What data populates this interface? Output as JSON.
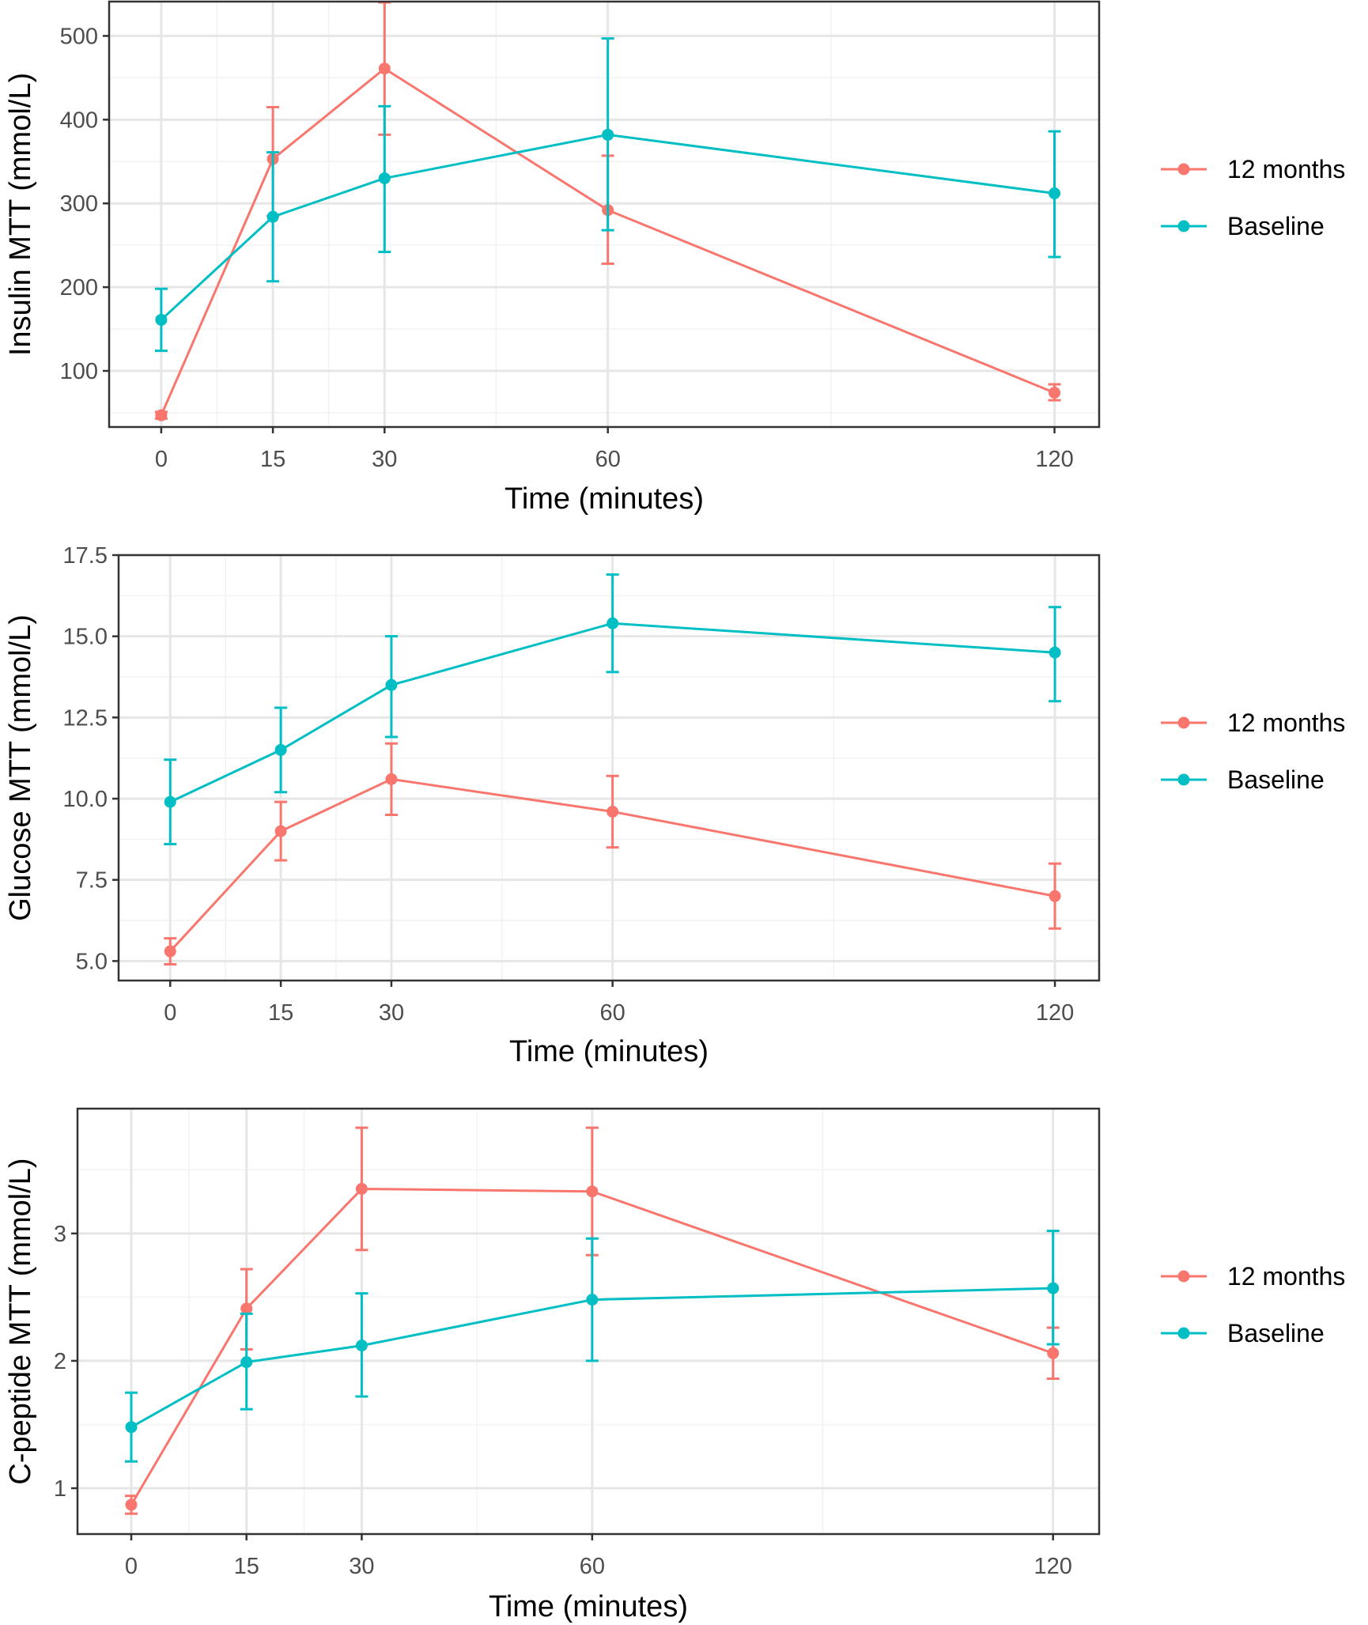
{
  "colors": {
    "months12": "#F8766D",
    "baseline": "#00BFC4"
  },
  "chart_data": [
    {
      "type": "line",
      "ylabel": "Insulin MTT (mmol/L)",
      "xlabel": "Time (minutes)",
      "x": [
        0,
        15,
        30,
        60,
        120
      ],
      "xticks": [
        "0",
        "15",
        "30",
        "60",
        "120"
      ],
      "xlim": [
        -7,
        126
      ],
      "xminor": [
        7.5,
        22.5,
        45,
        90
      ],
      "ylim": [
        33,
        541
      ],
      "yticks": [
        100,
        200,
        300,
        400,
        500
      ],
      "yticklabels": [
        "100",
        "200",
        "300",
        "400",
        "500"
      ],
      "yminor": [
        50,
        150,
        250,
        350,
        450
      ],
      "grid": true,
      "legend_position": "right",
      "series": [
        {
          "name": "12 months",
          "color": "#F8766D",
          "values": [
            47,
            353,
            461,
            292,
            74
          ],
          "lower": [
            43,
            285,
            382,
            228,
            65
          ],
          "upper": [
            51,
            415,
            540,
            357,
            84
          ]
        },
        {
          "name": "Baseline",
          "color": "#00BFC4",
          "values": [
            161,
            284,
            330,
            382,
            312
          ],
          "lower": [
            124,
            207,
            242,
            268,
            236
          ],
          "upper": [
            198,
            361,
            416,
            497,
            386
          ]
        }
      ]
    },
    {
      "type": "line",
      "ylabel": "Glucose MTT (mmol/L)",
      "xlabel": "Time (minutes)",
      "x": [
        0,
        15,
        30,
        60,
        120
      ],
      "xticks": [
        "0",
        "15",
        "30",
        "60",
        "120"
      ],
      "xlim": [
        -7,
        126
      ],
      "xminor": [
        7.5,
        22.5,
        45,
        90
      ],
      "ylim": [
        4.4,
        17.5
      ],
      "yticks": [
        5.0,
        7.5,
        10.0,
        12.5,
        15.0,
        17.5
      ],
      "yticklabels": [
        "5.0",
        "7.5",
        "10.0",
        "12.5",
        "15.0",
        "17.5"
      ],
      "yminor": [
        6.25,
        8.75,
        11.25,
        13.75,
        16.25
      ],
      "grid": true,
      "legend_position": "right",
      "series": [
        {
          "name": "12 months",
          "color": "#F8766D",
          "values": [
            5.3,
            9.0,
            10.6,
            9.6,
            7.0
          ],
          "lower": [
            4.9,
            8.1,
            9.5,
            8.5,
            6.0
          ],
          "upper": [
            5.7,
            9.9,
            11.7,
            10.7,
            8.0
          ]
        },
        {
          "name": "Baseline",
          "color": "#00BFC4",
          "values": [
            9.9,
            11.5,
            13.5,
            15.4,
            14.5
          ],
          "lower": [
            8.6,
            10.2,
            11.9,
            13.9,
            13.0
          ],
          "upper": [
            11.2,
            12.8,
            15.0,
            16.9,
            15.9
          ]
        }
      ]
    },
    {
      "type": "line",
      "ylabel": "C-peptide MTT (mmol/L)",
      "xlabel": "Time (minutes)",
      "x": [
        0,
        15,
        30,
        60,
        120
      ],
      "xticks": [
        "0",
        "15",
        "30",
        "60",
        "120"
      ],
      "xlim": [
        -7,
        126
      ],
      "xminor": [
        7.5,
        22.5,
        45,
        90
      ],
      "ylim": [
        0.64,
        3.98
      ],
      "yticks": [
        1,
        2,
        3
      ],
      "yticklabels": [
        "1",
        "2",
        "3"
      ],
      "yminor": [
        1.5,
        2.5,
        3.5
      ],
      "grid": true,
      "legend_position": "right",
      "series": [
        {
          "name": "12 months",
          "color": "#F8766D",
          "values": [
            0.87,
            2.41,
            3.35,
            3.33,
            2.06
          ],
          "lower": [
            0.8,
            2.09,
            2.87,
            2.83,
            1.86
          ],
          "upper": [
            0.94,
            2.72,
            3.83,
            3.83,
            2.26
          ]
        },
        {
          "name": "Baseline",
          "color": "#00BFC4",
          "values": [
            1.48,
            1.99,
            2.12,
            2.48,
            2.57
          ],
          "lower": [
            1.21,
            1.62,
            1.72,
            2.0,
            2.13
          ],
          "upper": [
            1.75,
            2.37,
            2.53,
            2.96,
            3.02
          ]
        }
      ]
    }
  ]
}
